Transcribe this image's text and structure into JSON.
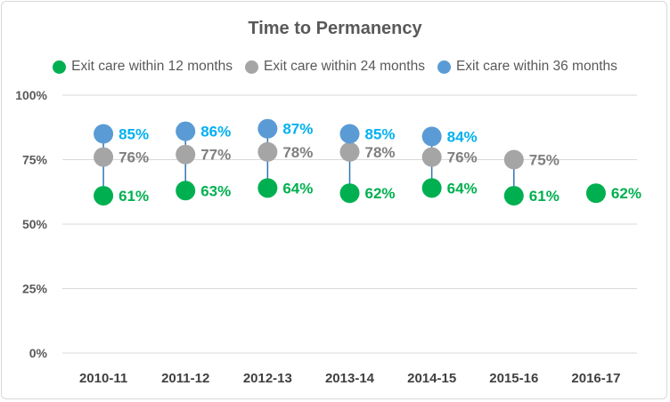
{
  "chart_data": {
    "type": "scatter",
    "title": "Time to Permanency",
    "xlabel": "",
    "ylabel": "",
    "categories": [
      "2010-11",
      "2011-12",
      "2012-13",
      "2013-14",
      "2014-15",
      "2015-16",
      "2016-17"
    ],
    "yticks": [
      "0%",
      "25%",
      "50%",
      "75%",
      "100%"
    ],
    "ylim": [
      0,
      100
    ],
    "grid": true,
    "legend_position": "top",
    "series": [
      {
        "name": "Exit care within 12 months",
        "color": "#00b050",
        "label_color": "#00b050",
        "values": [
          61,
          63,
          64,
          62,
          64,
          61,
          62
        ],
        "labels": [
          "61%",
          "63%",
          "64%",
          "62%",
          "64%",
          "61%",
          "62%"
        ]
      },
      {
        "name": "Exit care within 24 months",
        "color": "#a5a5a5",
        "label_color": "#7f7f7f",
        "values": [
          76,
          77,
          78,
          78,
          76,
          75,
          null
        ],
        "labels": [
          "76%",
          "77%",
          "78%",
          "78%",
          "76%",
          "75%",
          null
        ]
      },
      {
        "name": "Exit care within 36 months",
        "color": "#5b9bd5",
        "label_color": "#00b0f0",
        "values": [
          85,
          86,
          87,
          85,
          84,
          null,
          null
        ],
        "labels": [
          "85%",
          "86%",
          "87%",
          "85%",
          "84%",
          null,
          null
        ]
      }
    ],
    "connector_color": "#2e75b6"
  }
}
